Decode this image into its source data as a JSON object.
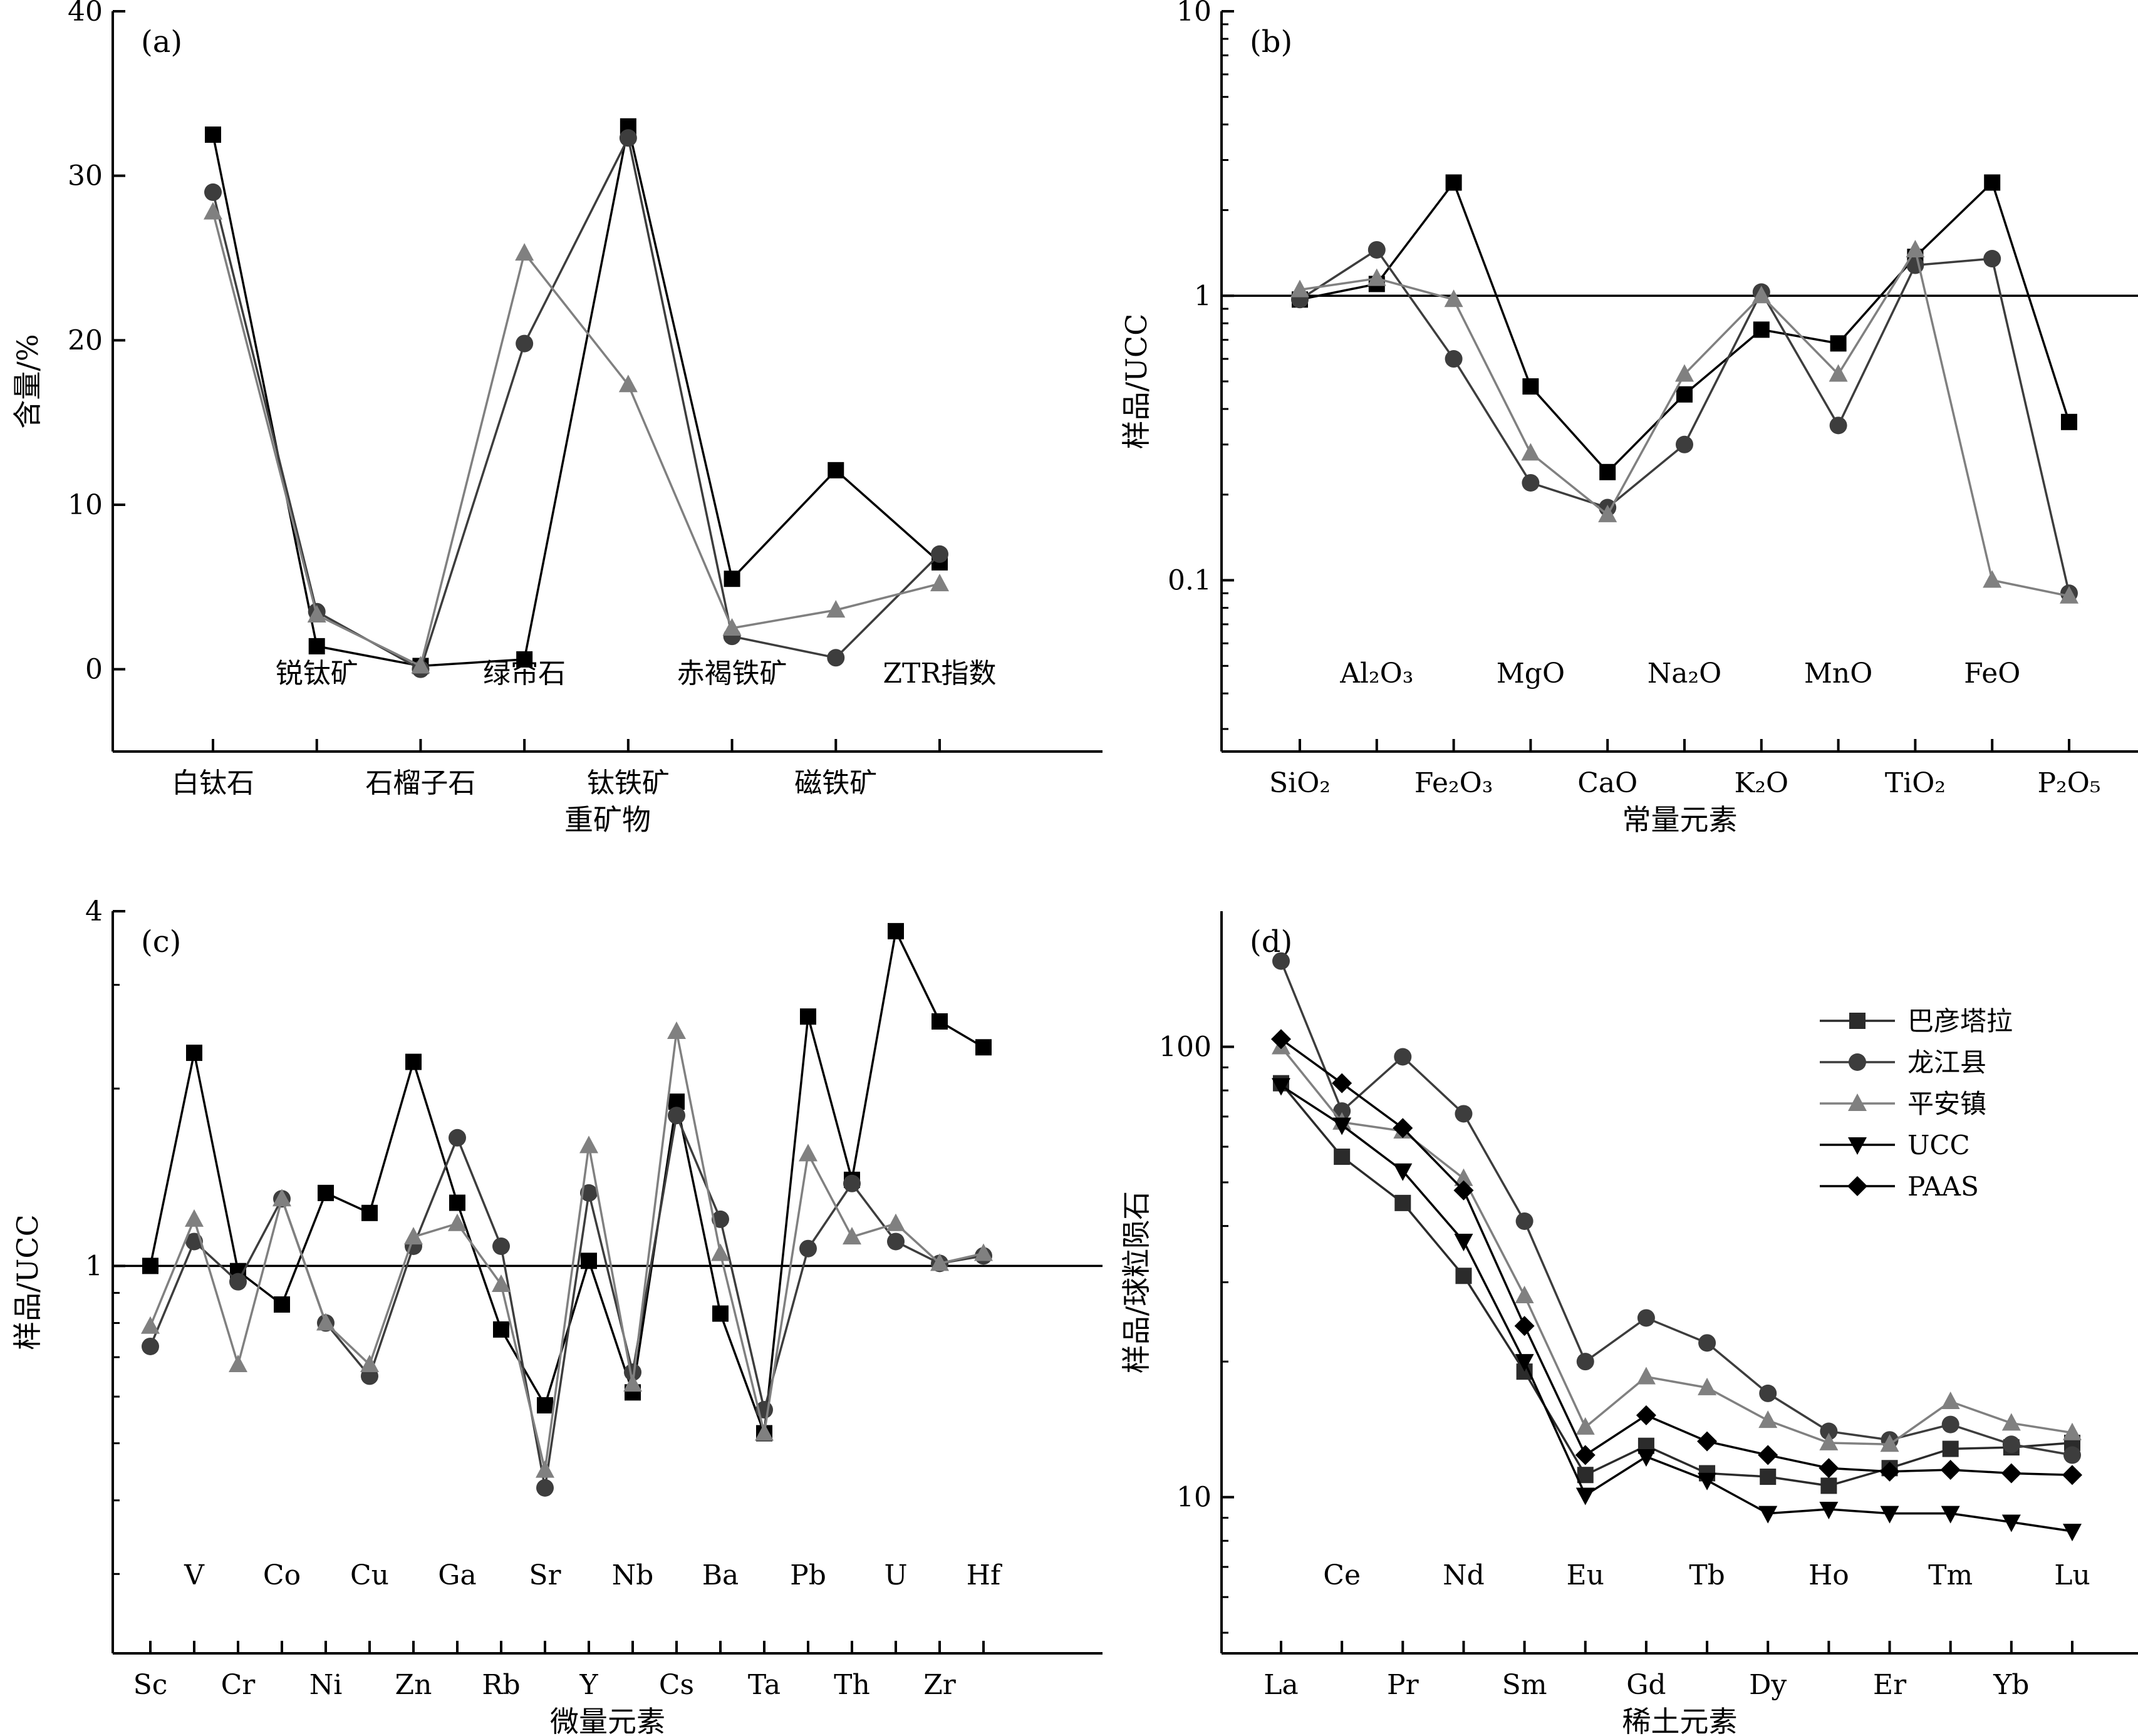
{
  "colors": {
    "bayantala": "#000000",
    "longjiang": "#3d3d3d",
    "pingan": "#808080",
    "ucc": "#000000",
    "paas": "#000000"
  },
  "chart_data": [
    {
      "id": "a",
      "panel_label": "(a)",
      "type": "line",
      "xlabel": "重矿物",
      "ylabel": "含量/%",
      "ylim": [
        -5,
        40
      ],
      "yticks": [
        0,
        10,
        20,
        30,
        40
      ],
      "categories": [
        "白钛石",
        "锐钛矿",
        "石榴子石",
        "绿帘石",
        "钛铁矿",
        "赤褐铁矿",
        "磁铁矿",
        "ZTR指数"
      ],
      "series": [
        {
          "name": "巴彦塔拉",
          "marker": "square",
          "values": [
            32.5,
            1.4,
            0.2,
            0.6,
            33.0,
            5.5,
            12.1,
            6.5
          ]
        },
        {
          "name": "龙江县",
          "marker": "circle",
          "values": [
            29.0,
            3.5,
            0.0,
            19.8,
            32.3,
            2.0,
            0.7,
            7.0
          ]
        },
        {
          "name": "平安镇",
          "marker": "triangle",
          "values": [
            27.8,
            3.3,
            0.2,
            25.3,
            17.3,
            2.5,
            3.6,
            5.2
          ]
        }
      ]
    },
    {
      "id": "b",
      "panel_label": "(b)",
      "type": "line",
      "log_y": true,
      "xlabel": "常量元素",
      "ylabel": "样品/UCC",
      "ylim": [
        0.025,
        10
      ],
      "yticks": [
        0.1,
        1,
        10
      ],
      "yticklabels": [
        "0.1",
        "1",
        "10"
      ],
      "reference_line": 1,
      "categories": [
        "SiO₂",
        "Al₂O₃",
        "Fe₂O₃",
        "MgO",
        "CaO",
        "Na₂O",
        "K₂O",
        "MnO",
        "TiO₂",
        "FeO",
        "P₂O₅"
      ],
      "series": [
        {
          "name": "巴彦塔拉",
          "marker": "square",
          "values": [
            0.97,
            1.1,
            2.5,
            0.48,
            0.24,
            0.45,
            0.76,
            0.68,
            1.37,
            2.5,
            0.36
          ]
        },
        {
          "name": "龙江县",
          "marker": "circle",
          "values": [
            0.97,
            1.45,
            0.6,
            0.22,
            0.18,
            0.3,
            1.03,
            0.35,
            1.28,
            1.35,
            0.09
          ]
        },
        {
          "name": "平安镇",
          "marker": "triangle",
          "values": [
            1.05,
            1.15,
            0.97,
            0.28,
            0.17,
            0.53,
            1.0,
            0.53,
            1.45,
            0.1,
            0.088
          ]
        }
      ]
    },
    {
      "id": "c",
      "panel_label": "(c)",
      "type": "line",
      "log_y": true,
      "xlabel": "微量元素",
      "ylabel": "样品/UCC",
      "ylim": [
        0.22,
        4
      ],
      "yticks": [
        1,
        4
      ],
      "yticklabels": [
        "1",
        "4"
      ],
      "reference_line": 1,
      "categories": [
        "Sc",
        "V",
        "Cr",
        "Co",
        "Ni",
        "Cu",
        "Zn",
        "Ga",
        "Rb",
        "Sr",
        "Y",
        "Nb",
        "Cs",
        "Ba",
        "Ta",
        "Pb",
        "Th",
        "U",
        "Zr",
        "Hf"
      ],
      "series": [
        {
          "name": "巴彦塔拉",
          "marker": "square",
          "values": [
            1.0,
            2.3,
            0.98,
            0.86,
            1.33,
            1.23,
            2.22,
            1.28,
            0.78,
            0.58,
            1.02,
            0.61,
            1.9,
            0.83,
            0.52,
            2.65,
            1.4,
            3.7,
            2.6,
            2.35
          ]
        },
        {
          "name": "龙江县",
          "marker": "circle",
          "values": [
            0.73,
            1.1,
            0.94,
            1.3,
            0.8,
            0.65,
            1.08,
            1.65,
            1.08,
            0.42,
            1.33,
            0.66,
            1.8,
            1.2,
            0.57,
            1.07,
            1.38,
            1.1,
            1.01,
            1.04
          ]
        },
        {
          "name": "平安镇",
          "marker": "triangle",
          "values": [
            0.79,
            1.2,
            0.68,
            1.3,
            0.8,
            0.68,
            1.12,
            1.18,
            0.93,
            0.45,
            1.6,
            0.63,
            2.5,
            1.05,
            0.52,
            1.55,
            1.12,
            1.18,
            1.01,
            1.05
          ]
        }
      ]
    },
    {
      "id": "d",
      "panel_label": "(d)",
      "type": "line",
      "log_y": true,
      "xlabel": "稀土元素",
      "ylabel": "样品/球粒陨石",
      "ylim": [
        4.5,
        200
      ],
      "yticks": [
        10,
        100
      ],
      "yticklabels": [
        "10",
        "100"
      ],
      "legend_position": "top-right",
      "categories": [
        "La",
        "Ce",
        "Pr",
        "Nd",
        "Sm",
        "Eu",
        "Gd",
        "Tb",
        "Dy",
        "Ho",
        "Er",
        "Tm",
        "Yb",
        "Lu"
      ],
      "series": [
        {
          "name": "巴彦塔拉",
          "marker": "square-gray",
          "values": [
            83,
            57,
            45,
            31,
            19,
            11.2,
            13,
            11.3,
            11.1,
            10.6,
            11.6,
            12.8,
            12.9,
            13.2
          ]
        },
        {
          "name": "龙江县",
          "marker": "circle",
          "values": [
            155,
            72,
            95,
            71,
            41,
            20,
            25,
            22,
            17,
            14,
            13.4,
            14.5,
            13.1,
            12.4
          ]
        },
        {
          "name": "平安镇",
          "marker": "triangle",
          "values": [
            100,
            68,
            65,
            51,
            28,
            14.3,
            18.5,
            17.5,
            14.8,
            13.2,
            13.1,
            16.3,
            14.6,
            13.9
          ]
        },
        {
          "name": "UCC",
          "marker": "triangle-down",
          "values": [
            82,
            67,
            53,
            37,
            20,
            10.1,
            12.3,
            10.9,
            9.2,
            9.4,
            9.2,
            9.2,
            8.8,
            8.4
          ]
        },
        {
          "name": "PAAS",
          "marker": "diamond",
          "values": [
            104,
            83,
            66,
            48,
            24,
            12.4,
            15.2,
            13.3,
            12.4,
            11.6,
            11.4,
            11.5,
            11.3,
            11.2
          ]
        }
      ]
    }
  ]
}
